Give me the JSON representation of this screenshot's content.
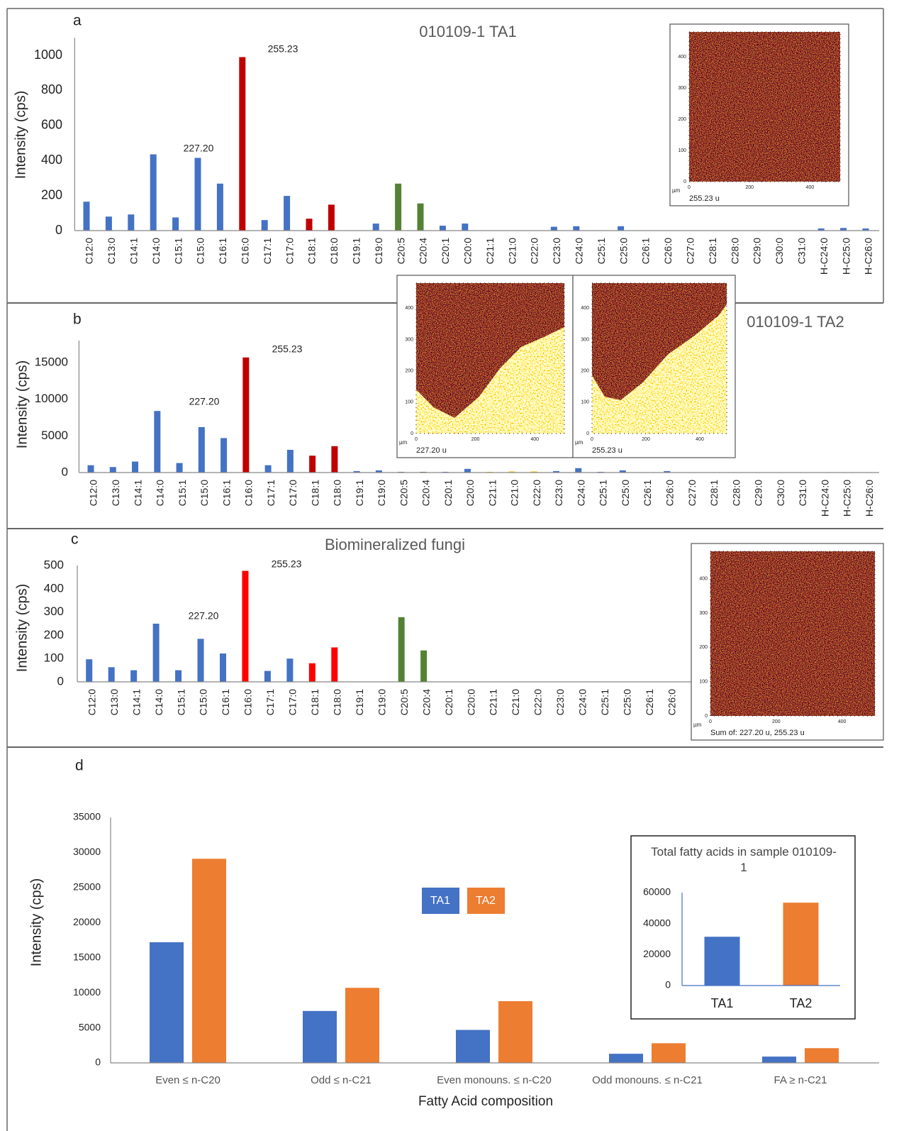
{
  "chart_data": [
    {
      "panel": "a",
      "type": "bar",
      "title": "010109-1 TA1",
      "y_label": "Intensity (cps)",
      "categories": [
        "C12:0",
        "C13:0",
        "C14:1",
        "C14:0",
        "C15:1",
        "C15:0",
        "C16:1",
        "C16:0",
        "C17:1",
        "C17:0",
        "C18:1",
        "C18:0",
        "C19:1",
        "C19:0",
        "C20:5",
        "C20:4",
        "C20:1",
        "C20:0",
        "C21:1",
        "C21:0",
        "C22:0",
        "C23:0",
        "C24:0",
        "C25:1",
        "C25:0",
        "C26:1",
        "C26:0",
        "C27:0",
        "C28:1",
        "C28:0",
        "C29:0",
        "C30:0",
        "C31:0",
        "H-C24:0",
        "H-C25:0",
        "H-C26:0"
      ],
      "values": [
        165,
        80,
        92,
        435,
        75,
        415,
        268,
        990,
        60,
        198,
        68,
        148,
        0,
        40,
        268,
        155,
        28,
        40,
        0,
        0,
        0,
        22,
        25,
        0,
        25,
        0,
        0,
        0,
        0,
        0,
        0,
        0,
        0,
        12,
        15,
        12
      ],
      "colors": [
        "#4472c4",
        "#4472c4",
        "#4472c4",
        "#4472c4",
        "#4472c4",
        "#4472c4",
        "#4472c4",
        "#c00000",
        "#4472c4",
        "#4472c4",
        "#c00000",
        "#c00000",
        "#4472c4",
        "#4472c4",
        "#548235",
        "#548235",
        "#4472c4",
        "#4472c4",
        "#4472c4",
        "#4472c4",
        "#4472c4",
        "#4472c4",
        "#4472c4",
        "#4472c4",
        "#4472c4",
        "#4472c4",
        "#4472c4",
        "#4472c4",
        "#4472c4",
        "#4472c4",
        "#4472c4",
        "#4472c4",
        "#4472c4",
        "#4472c4",
        "#4472c4",
        "#4472c4"
      ],
      "annotations": [
        "227.20",
        "255.23"
      ],
      "ylim": [
        0,
        1100
      ],
      "yticks": [
        0,
        200,
        400,
        600,
        800,
        1000
      ]
    },
    {
      "panel": "b",
      "type": "bar",
      "title": "010109-1 TA2",
      "y_label": "Intensity (cps)",
      "categories": [
        "C12:0",
        "C13:0",
        "C14:1",
        "C14:0",
        "C15:1",
        "C15:0",
        "C16:1",
        "C16:0",
        "C17:1",
        "C17:0",
        "C18:1",
        "C18:0",
        "C19:1",
        "C19:0",
        "C20:5",
        "C20:4",
        "C20:1",
        "C20:0",
        "C21:1",
        "C21:0",
        "C22:0",
        "C23:0",
        "C24:0",
        "C25:1",
        "C25:0",
        "C26:1",
        "C26:0",
        "C27:0",
        "C28:1",
        "C28:0",
        "C29:0",
        "C30:0",
        "C31:0",
        "H-C24:0",
        "H-C25:0",
        "H-C26:0"
      ],
      "values": [
        1000,
        750,
        1500,
        8400,
        1300,
        6200,
        4700,
        15700,
        1000,
        3100,
        2300,
        3600,
        200,
        300,
        100,
        100,
        100,
        500,
        100,
        150,
        150,
        200,
        600,
        100,
        300,
        50,
        200,
        0,
        0,
        0,
        0,
        0,
        0,
        0,
        0,
        0
      ],
      "colors": [
        "#4472c4",
        "#4472c4",
        "#4472c4",
        "#4472c4",
        "#4472c4",
        "#4472c4",
        "#4472c4",
        "#c00000",
        "#4472c4",
        "#4472c4",
        "#c00000",
        "#c00000",
        "#4472c4",
        "#4472c4",
        "#548235",
        "#548235",
        "#4472c4",
        "#4472c4",
        "#ffc000",
        "#ffc000",
        "#ffc000",
        "#4472c4",
        "#4472c4",
        "#4472c4",
        "#4472c4",
        "#4472c4",
        "#4472c4",
        "#4472c4",
        "#4472c4",
        "#4472c4",
        "#4472c4",
        "#4472c4",
        "#4472c4",
        "#4472c4",
        "#4472c4",
        "#4472c4"
      ],
      "annotations": [
        "227.20",
        "255.23"
      ],
      "ylim": [
        0,
        18000
      ],
      "yticks": [
        0,
        5000,
        10000,
        15000
      ]
    },
    {
      "panel": "c",
      "type": "bar",
      "title": "Biomineralized fungi",
      "y_label": "Intensity (cps)",
      "categories": [
        "C12:0",
        "C13:0",
        "C14:1",
        "C14:0",
        "C15:1",
        "C15:0",
        "C16:1",
        "C16:0",
        "C17:1",
        "C17:0",
        "C18:1",
        "C18:0",
        "C19:1",
        "C19:0",
        "C20:5",
        "C20:4",
        "C20:1",
        "C20:0",
        "C21:1",
        "C21:0",
        "C22:0",
        "C23:0",
        "C24:0",
        "C25:1",
        "C25:0",
        "C26:1",
        "C26:0"
      ],
      "values": [
        97,
        63,
        50,
        250,
        50,
        185,
        122,
        477,
        47,
        100,
        80,
        148,
        0,
        0,
        278,
        135,
        0,
        0,
        0,
        0,
        0,
        0,
        0,
        0,
        0,
        0,
        0
      ],
      "colors": [
        "#4472c4",
        "#4472c4",
        "#4472c4",
        "#4472c4",
        "#4472c4",
        "#4472c4",
        "#4472c4",
        "#ff0000",
        "#4472c4",
        "#4472c4",
        "#ff0000",
        "#ff0000",
        "#4472c4",
        "#4472c4",
        "#548235",
        "#548235",
        "#4472c4",
        "#4472c4",
        "#4472c4",
        "#4472c4",
        "#4472c4",
        "#4472c4",
        "#4472c4",
        "#4472c4",
        "#4472c4",
        "#4472c4",
        "#4472c4"
      ],
      "annotations": [
        "227.20",
        "255.23"
      ],
      "ylim": [
        0,
        500
      ],
      "yticks": [
        0,
        100,
        200,
        300,
        400,
        500
      ]
    },
    {
      "panel": "d",
      "type": "bar",
      "y_label": "Intensity (cps)",
      "x_label": "Fatty Acid composition",
      "categories": [
        "Even ≤ n-C20",
        "Odd ≤ n-C21",
        "Even monouns. ≤ n-C20",
        "Odd monouns.  ≤ n-C21",
        "FA ≥ n-C21"
      ],
      "series": [
        {
          "name": "TA1",
          "color": "#4472c4",
          "values": [
            17200,
            7400,
            4700,
            1300,
            900
          ]
        },
        {
          "name": "TA2",
          "color": "#ed7d31",
          "values": [
            29100,
            10700,
            8800,
            2800,
            2100
          ]
        }
      ],
      "ylim": [
        0,
        35000
      ],
      "yticks": [
        0,
        5000,
        10000,
        15000,
        20000,
        25000,
        30000,
        35000
      ]
    },
    {
      "type": "bar",
      "title": "Total fatty acids in sample 010109-1",
      "categories": [
        "TA1",
        "TA2"
      ],
      "values": [
        31500,
        53500
      ],
      "colors": [
        "#4472c4",
        "#ed7d31"
      ],
      "ylim": [
        0,
        60000
      ],
      "yticks": [
        0,
        20000,
        40000,
        60000
      ]
    }
  ],
  "images": [
    {
      "caption": "255.23 u",
      "unit": "µm",
      "xticks": [
        0,
        200,
        400
      ],
      "yticks": [
        0,
        100,
        200,
        300,
        400
      ]
    },
    {
      "caption": "227.20 u",
      "unit": "µm",
      "xticks": [
        0,
        200,
        400
      ],
      "yticks": [
        0,
        100,
        200,
        300,
        400
      ]
    },
    {
      "caption": "255.23 u",
      "unit": "µm",
      "xticks": [
        0,
        200,
        400
      ],
      "yticks": [
        0,
        100,
        200,
        300,
        400
      ]
    },
    {
      "caption": "Sum of: 227.20 u, 255.23 u",
      "unit": "µm",
      "xticks": [
        0,
        200,
        400
      ],
      "yticks": [
        0,
        100,
        200,
        300,
        400
      ]
    }
  ]
}
